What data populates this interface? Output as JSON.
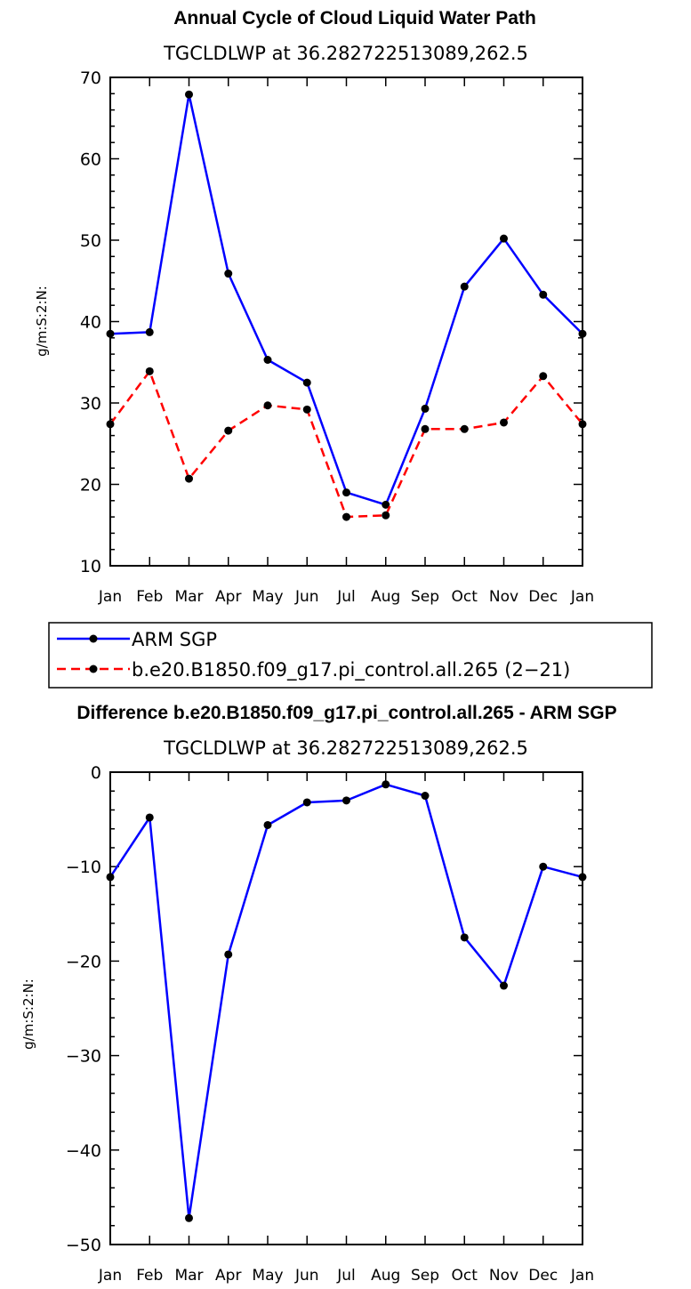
{
  "chart_data": [
    {
      "type": "line",
      "title": "Annual Cycle of Cloud Liquid Water Path",
      "subtitle": "TGCLDLWP  at  36.282722513089,262.5",
      "xlabel": "",
      "ylabel": "g/m:S:2:N:",
      "categories": [
        "Jan",
        "Feb",
        "Mar",
        "Apr",
        "May",
        "Jun",
        "Jul",
        "Aug",
        "Sep",
        "Oct",
        "Nov",
        "Dec",
        "Jan"
      ],
      "ylim": [
        10,
        70
      ],
      "yticks": [
        10,
        20,
        30,
        40,
        50,
        60,
        70
      ],
      "series": [
        {
          "name": "ARM SGP",
          "color": "#0000ff",
          "dash": "solid",
          "values": [
            38.5,
            38.7,
            67.9,
            45.9,
            35.3,
            32.5,
            19.0,
            17.5,
            29.3,
            44.3,
            50.2,
            43.3,
            38.5
          ]
        },
        {
          "name": "b.e20.B1850.f09_g17.pi_control.all.265 (2−21)",
          "color": "#ff0000",
          "dash": "dashed",
          "values": [
            27.4,
            33.9,
            20.7,
            26.6,
            29.7,
            29.2,
            16.0,
            16.2,
            26.8,
            26.8,
            27.6,
            33.3,
            27.4
          ]
        }
      ]
    },
    {
      "type": "line",
      "title": "Difference b.e20.B1850.f09_g17.pi_control.all.265 - ARM SGP",
      "subtitle": "TGCLDLWP  at  36.282722513089,262.5",
      "xlabel": "",
      "ylabel": "g/m:S:2:N:",
      "categories": [
        "Jan",
        "Feb",
        "Mar",
        "Apr",
        "May",
        "Jun",
        "Jul",
        "Aug",
        "Sep",
        "Oct",
        "Nov",
        "Dec",
        "Jan"
      ],
      "ylim": [
        -50,
        0
      ],
      "yticks": [
        -50,
        -40,
        -30,
        -20,
        -10,
        0
      ],
      "series": [
        {
          "name": "Difference",
          "color": "#0000ff",
          "dash": "solid",
          "values": [
            -11.1,
            -4.8,
            -47.2,
            -19.3,
            -5.6,
            -3.2,
            -3.0,
            -1.3,
            -2.5,
            -17.5,
            -22.6,
            -10.0,
            -11.1
          ]
        }
      ]
    }
  ],
  "legend": {
    "entries": [
      {
        "label": "ARM SGP",
        "color": "#0000ff",
        "dash": "solid"
      },
      {
        "label": "b.e20.B1850.f09_g17.pi_control.all.265 (2−21)",
        "color": "#ff0000",
        "dash": "dashed"
      }
    ]
  }
}
